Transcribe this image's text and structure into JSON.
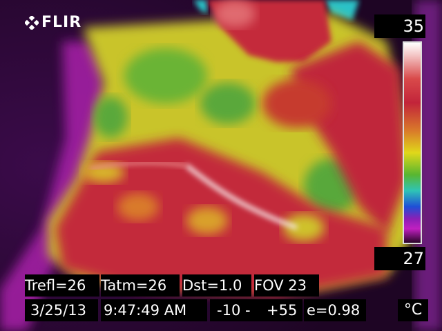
{
  "brand": {
    "logo_text": "FLIR"
  },
  "scale": {
    "max": "35",
    "min": "27",
    "unit": "°C"
  },
  "params": {
    "trefl": "Trefl=26",
    "tatm": "Tatm=26",
    "dst": "Dst=1.0",
    "fov": "FOV 23"
  },
  "status": {
    "date": "3/25/13",
    "time": "9:47:49 AM",
    "range_low": "-10 -",
    "range_high": "+55",
    "emissivity": "e=0.98"
  },
  "colors": {
    "background": "#2a0428",
    "overlay_box": "#000000",
    "text": "#ffffff"
  }
}
